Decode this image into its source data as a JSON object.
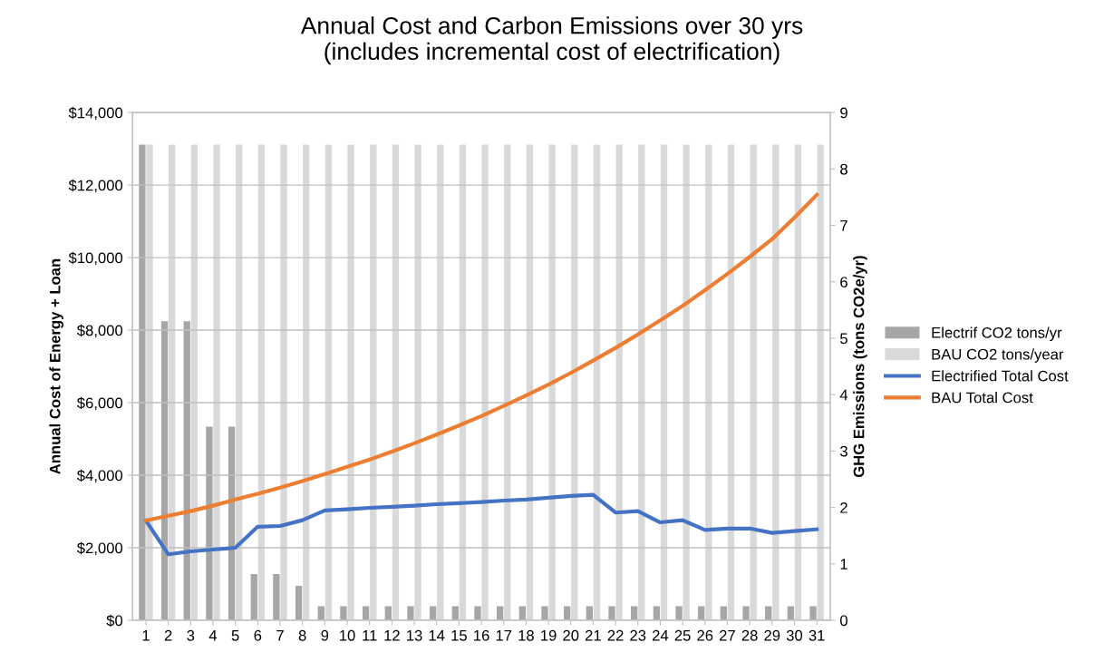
{
  "chart_data": {
    "type": "bar",
    "title": "Annual Cost and Carbon Emissions over 30 yrs\n(includes incremental cost of electrification)",
    "ylabel": "Annual Cost of Energy + Loan",
    "y2label": "GHG Emissions (tons CO2e/yr)",
    "categories": [
      "1",
      "2",
      "3",
      "4",
      "5",
      "6",
      "7",
      "8",
      "9",
      "10",
      "11",
      "12",
      "13",
      "14",
      "15",
      "16",
      "17",
      "18",
      "19",
      "20",
      "21",
      "22",
      "23",
      "24",
      "25",
      "26",
      "27",
      "28",
      "29",
      "30",
      "31"
    ],
    "series": [
      {
        "name": "Electrif CO2 tons/yr",
        "axis": "y2",
        "color": "#a6a6a6",
        "values": [
          8.43,
          5.3,
          5.3,
          3.43,
          3.43,
          0.82,
          0.82,
          0.61,
          0.25,
          0.25,
          0.25,
          0.25,
          0.25,
          0.25,
          0.25,
          0.25,
          0.25,
          0.25,
          0.25,
          0.25,
          0.25,
          0.25,
          0.25,
          0.25,
          0.25,
          0.25,
          0.25,
          0.25,
          0.25,
          0.25,
          0.25
        ]
      },
      {
        "name": "BAU CO2 tons/year",
        "axis": "y2",
        "color": "#d9d9d9",
        "values": [
          8.43,
          8.43,
          8.43,
          8.43,
          8.43,
          8.43,
          8.43,
          8.43,
          8.43,
          8.43,
          8.43,
          8.43,
          8.43,
          8.43,
          8.43,
          8.43,
          8.43,
          8.43,
          8.43,
          8.43,
          8.43,
          8.43,
          8.43,
          8.43,
          8.43,
          8.43,
          8.43,
          8.43,
          8.43,
          8.43,
          8.43
        ]
      },
      {
        "name": "Electrified Total Cost",
        "type": "line",
        "color": "#4472c4",
        "values": [
          2750,
          1820,
          1900,
          1950,
          2000,
          2580,
          2600,
          2760,
          3030,
          3060,
          3100,
          3130,
          3160,
          3200,
          3230,
          3260,
          3300,
          3330,
          3380,
          3430,
          3460,
          2970,
          3010,
          2700,
          2760,
          2490,
          2530,
          2530,
          2410,
          2460,
          2510
        ]
      },
      {
        "name": "BAU Total Cost",
        "type": "line",
        "color": "#ed7d31",
        "values": [
          2750,
          2880,
          3010,
          3160,
          3330,
          3490,
          3660,
          3840,
          4030,
          4230,
          4430,
          4650,
          4880,
          5120,
          5370,
          5630,
          5910,
          6200,
          6500,
          6820,
          7160,
          7510,
          7880,
          8270,
          8670,
          9100,
          9550,
          10020,
          10510,
          11100,
          11730
        ]
      }
    ],
    "ylim": [
      0,
      14000
    ],
    "yticks": [
      {
        "value": 0,
        "label": "$0"
      },
      {
        "value": 2000,
        "label": "$2,000"
      },
      {
        "value": 4000,
        "label": "$4,000"
      },
      {
        "value": 6000,
        "label": "$6,000"
      },
      {
        "value": 8000,
        "label": "$8,000"
      },
      {
        "value": 10000,
        "label": "$10,000"
      },
      {
        "value": 12000,
        "label": "$12,000"
      },
      {
        "value": 14000,
        "label": "$14,000"
      }
    ],
    "y2lim": [
      0,
      9
    ],
    "y2ticks": [
      0,
      1,
      2,
      3,
      4,
      5,
      6,
      7,
      8,
      9
    ],
    "grid": "y",
    "legend": "right",
    "marker": "none",
    "line_style": "solid"
  }
}
